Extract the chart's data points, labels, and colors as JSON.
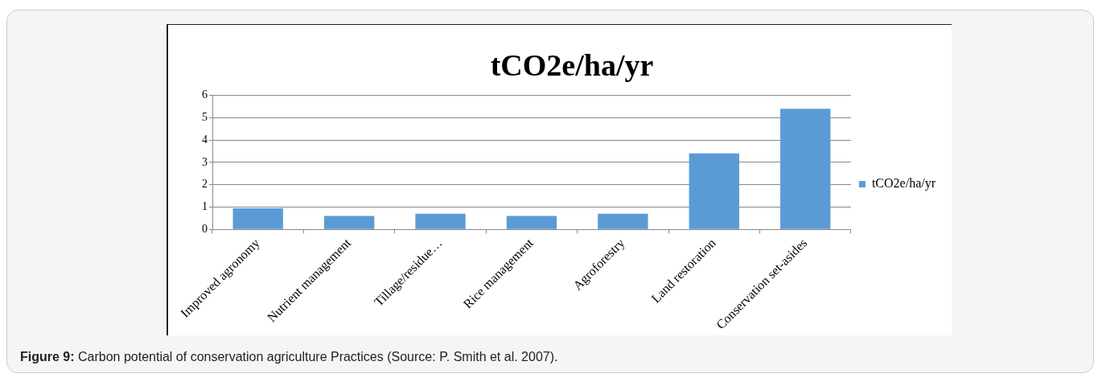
{
  "chart_data": {
    "type": "bar",
    "title": "tCO2e/ha/yr",
    "categories": [
      "Improved agronomy",
      "Nutrient management",
      "Tillage/residue…",
      "Rice management",
      "Agroforestry",
      "Land restoration",
      "Conservation set-asides"
    ],
    "series": [
      {
        "name": "tCO2e/ha/yr",
        "color": "#5b9bd5",
        "values": [
          0.95,
          0.6,
          0.7,
          0.6,
          0.7,
          3.4,
          5.4
        ]
      }
    ],
    "ylim": [
      0,
      6
    ],
    "yticks": [
      0,
      1,
      2,
      3,
      4,
      5,
      6
    ],
    "grid": "y",
    "legend": "right",
    "annotations": [
      "Figure 9: Carbon potential of conservation agriculture Practices (Source: P. Smith et al. 2007)."
    ]
  }
}
